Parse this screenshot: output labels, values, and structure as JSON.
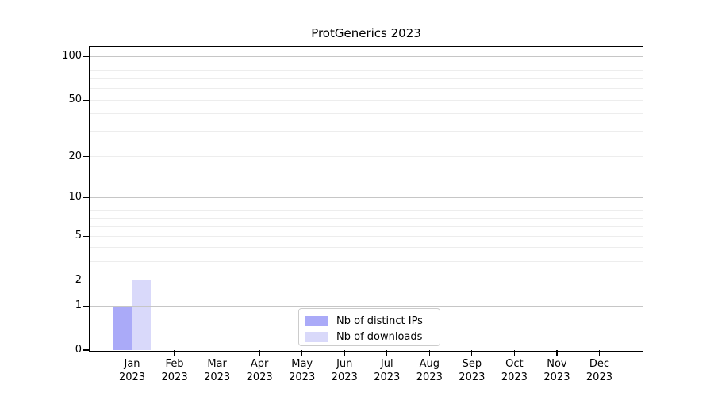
{
  "chart_data": {
    "type": "bar",
    "title": "ProtGenerics 2023",
    "categories": [
      "Jan",
      "Feb",
      "Mar",
      "Apr",
      "May",
      "Jun",
      "Jul",
      "Aug",
      "Sep",
      "Oct",
      "Nov",
      "Dec"
    ],
    "category_year": "2023",
    "series": [
      {
        "name": "Nb of distinct IPs",
        "color": "#aaaaf8",
        "values": [
          1,
          0,
          0,
          0,
          0,
          0,
          0,
          0,
          0,
          0,
          0,
          0
        ]
      },
      {
        "name": "Nb of downloads",
        "color": "#d9d9fa",
        "values": [
          2,
          0,
          0,
          0,
          0,
          0,
          0,
          0,
          0,
          0,
          0,
          0
        ]
      }
    ],
    "xlabel": "",
    "ylabel": "",
    "y_scale": "log1p",
    "ylim": [
      0,
      117
    ],
    "y_tick_labels": [
      0,
      1,
      2,
      5,
      10,
      20,
      50,
      100
    ],
    "y_major_gridlines": [
      1,
      10,
      100
    ],
    "y_minor_gridlines": [
      2,
      3,
      4,
      5,
      6,
      7,
      8,
      9,
      20,
      30,
      40,
      50,
      60,
      70,
      80,
      90
    ],
    "grid": true,
    "legend_position": "lower center",
    "colors": {
      "major_grid": "#c6c6c6",
      "minor_grid": "#ededed",
      "axis": "#000000",
      "text": "#000000",
      "legend_border": "#cccccc",
      "background": "#ffffff"
    }
  }
}
